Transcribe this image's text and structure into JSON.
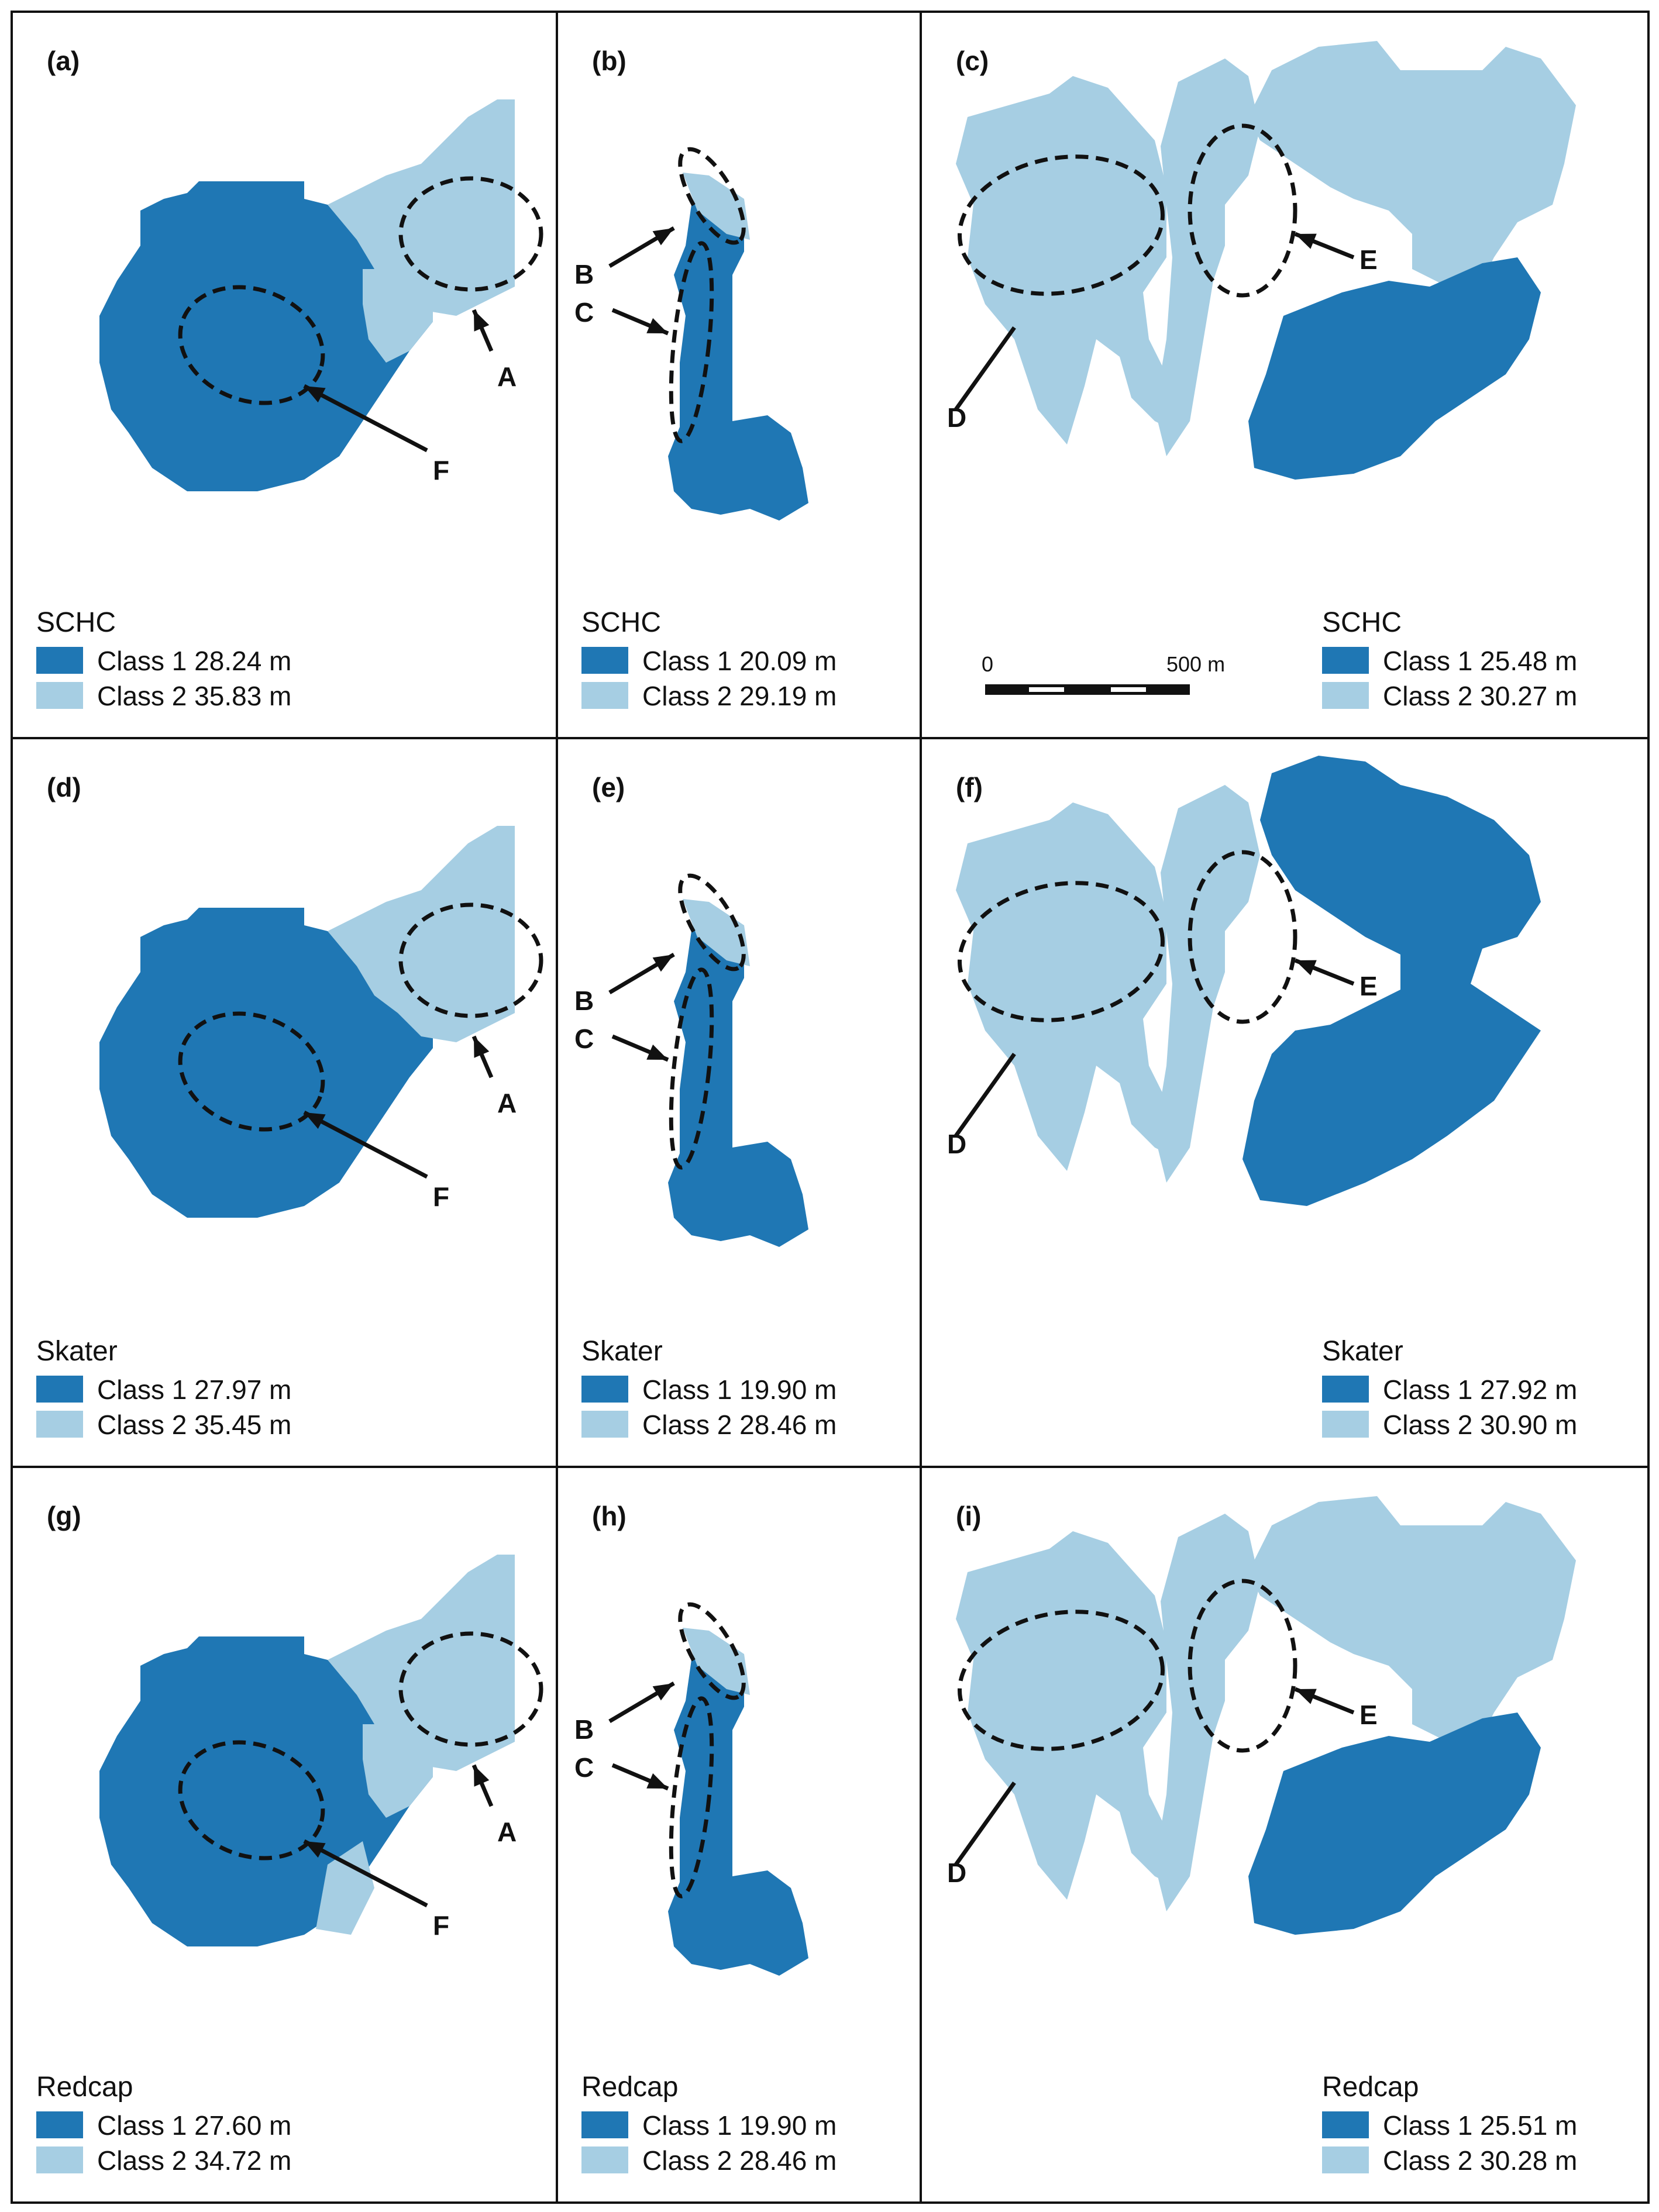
{
  "colors": {
    "class1": "#1f77b4",
    "class2": "#a6cee3",
    "frame": "#111111",
    "background": "#ffffff"
  },
  "panels": [
    {
      "id": "a",
      "label": "(a)",
      "method": "SCHC",
      "class1_label": "Class 1 28.24 m",
      "class2_label": "Class 2 35.83 m",
      "callouts": [
        "A",
        "F"
      ],
      "zone_class_order": "land-class1-dominant"
    },
    {
      "id": "b",
      "label": "(b)",
      "method": "SCHC",
      "class1_label": "Class 1 20.09 m",
      "class2_label": "Class 2 29.19 m",
      "callouts": [
        "B",
        "C"
      ]
    },
    {
      "id": "c",
      "label": "(c)",
      "method": "SCHC",
      "class1_label": "Class 1 25.48 m",
      "class2_label": "Class 2 30.27 m",
      "callouts": [
        "D",
        "E"
      ]
    },
    {
      "id": "d",
      "label": "(d)",
      "method": "Skater",
      "class1_label": "Class 1 27.97 m",
      "class2_label": "Class 2 35.45 m",
      "callouts": [
        "A",
        "F"
      ]
    },
    {
      "id": "e",
      "label": "(e)",
      "method": "Skater",
      "class1_label": "Class 1 19.90 m",
      "class2_label": "Class 2 28.46 m",
      "callouts": [
        "B",
        "C"
      ]
    },
    {
      "id": "f",
      "label": "(f)",
      "method": "Skater",
      "class1_label": "Class 1 27.92 m",
      "class2_label": "Class 2 30.90 m",
      "callouts": [
        "D",
        "E"
      ]
    },
    {
      "id": "g",
      "label": "(g)",
      "method": "Redcap",
      "class1_label": "Class 1 27.60 m",
      "class2_label": "Class 2 34.72 m",
      "callouts": [
        "A",
        "F"
      ]
    },
    {
      "id": "h",
      "label": "(h)",
      "method": "Redcap",
      "class1_label": "Class 1 19.90 m",
      "class2_label": "Class 2 28.46 m",
      "callouts": [
        "B",
        "C"
      ]
    },
    {
      "id": "i",
      "label": "(i)",
      "method": "Redcap",
      "class1_label": "Class 1 25.51 m",
      "class2_label": "Class 2 30.28 m",
      "callouts": [
        "D",
        "E"
      ]
    }
  ],
  "scale_bar": {
    "start_label": "0",
    "end_label": "500 m"
  }
}
